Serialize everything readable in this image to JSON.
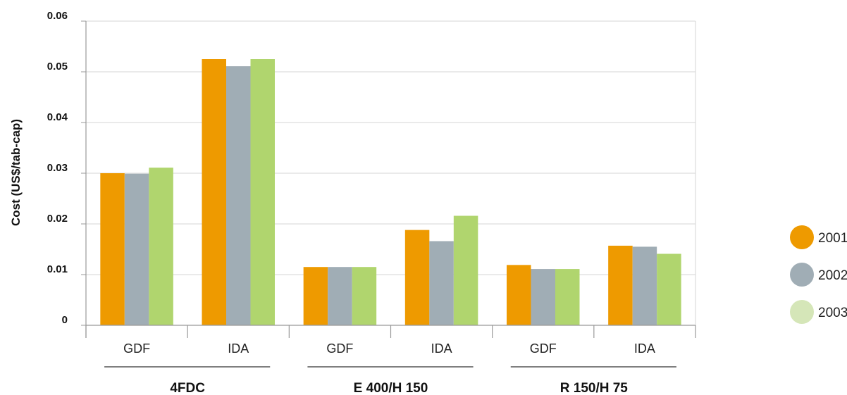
{
  "chart_data": {
    "type": "bar",
    "ylabel": "Cost (US$/tab-cap)",
    "ylim": [
      0,
      0.06
    ],
    "yticks": [
      "0",
      "0.01",
      "0.02",
      "0.03",
      "0.04",
      "0.05",
      "0.06"
    ],
    "grid": true,
    "legend_position": "right",
    "categories": [
      "GDF",
      "IDA",
      "GDF",
      "IDA",
      "GDF",
      "IDA"
    ],
    "groups": [
      {
        "label": "4FDC",
        "categories": [
          0,
          1
        ]
      },
      {
        "label": "E 400/H 150",
        "categories": [
          2,
          3
        ]
      },
      {
        "label": "R 150/H 75",
        "categories": [
          4,
          5
        ]
      }
    ],
    "series": [
      {
        "name": "2001",
        "color": "#ee9a00",
        "values": [
          0.03,
          0.0525,
          0.0115,
          0.0188,
          0.0119,
          0.0157
        ]
      },
      {
        "name": "2002",
        "color": "#a0adb5",
        "values": [
          0.0299,
          0.0511,
          0.0115,
          0.0166,
          0.0111,
          0.0155
        ]
      },
      {
        "name": "2003",
        "color": "#b0d56e",
        "legend_color": "#d5e6b8",
        "values": [
          0.0311,
          0.0525,
          0.0115,
          0.0216,
          0.0111,
          0.0141
        ]
      }
    ]
  }
}
